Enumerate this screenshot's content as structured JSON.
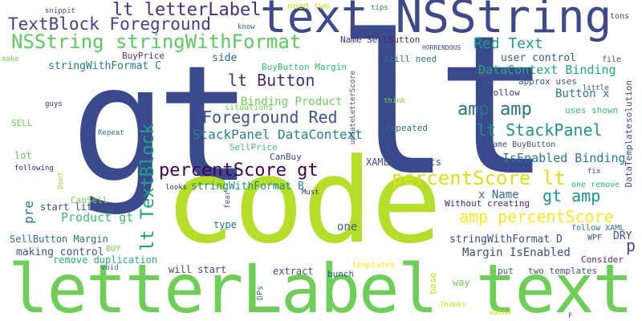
{
  "words": [
    {
      "text": "gt",
      "color": "#3b4a8c",
      "vertical": false
    },
    {
      "text": "lt",
      "color": "#3b4a8c",
      "vertical": false
    },
    {
      "text": "code",
      "color": "#b5de2b",
      "vertical": false
    },
    {
      "text": "letterLabel text",
      "color": "#6ece58",
      "vertical": false
    },
    {
      "text": "text NSString",
      "color": "#3e4a89",
      "vertical": false
    },
    {
      "text": "NSString stringWithFormat",
      "color": "#5ec962",
      "vertical": false
    },
    {
      "text": "lt letterLabel",
      "color": "#46307e",
      "vertical": false
    },
    {
      "text": "TextBlock Foreground",
      "color": "#414487",
      "vertical": false
    },
    {
      "text": "Red Text",
      "color": "#1f9a8a",
      "vertical": false
    },
    {
      "text": "lt Button",
      "color": "#472d7b",
      "vertical": false
    },
    {
      "text": "Foreground Red",
      "color": "#3b528b",
      "vertical": false
    },
    {
      "text": "amp amp",
      "color": "#2c728e",
      "vertical": false
    },
    {
      "text": "lt StackPanel",
      "color": "#20928c",
      "vertical": false
    },
    {
      "text": "percentScore gt",
      "color": "#440154",
      "vertical": false
    },
    {
      "text": "percentScore lt",
      "color": "#d8e219",
      "vertical": false
    },
    {
      "text": "gt amp",
      "color": "#21918c",
      "vertical": false
    },
    {
      "text": "amp percentScore",
      "color": "#fde725",
      "vertical": false
    },
    {
      "text": "lt TextBlock",
      "color": "#1fa187",
      "vertical": true
    },
    {
      "text": "StackPanel DataContext",
      "color": "#26828e",
      "vertical": false
    },
    {
      "text": "Binding Product",
      "color": "#6ece58",
      "vertical": false
    },
    {
      "text": "DataContext Binding",
      "color": "#22a884",
      "vertical": false
    },
    {
      "text": "user control",
      "color": "#33638d",
      "vertical": false
    },
    {
      "text": "Button x",
      "color": "#2a788e",
      "vertical": false
    },
    {
      "text": "IsEnabled Binding",
      "color": "#2a788e",
      "vertical": false
    },
    {
      "text": "x Name",
      "color": "#31688e",
      "vertical": false
    },
    {
      "text": "Product gt",
      "color": "#3fbc73",
      "vertical": false
    },
    {
      "text": "stringWithFormat C",
      "color": "#2a788e",
      "vertical": false
    },
    {
      "text": "stringWithFormat B",
      "color": "#23898e",
      "vertical": false
    },
    {
      "text": "stringWithFormat D",
      "color": "#3e4989",
      "vertical": false
    },
    {
      "text": "Margin IsEnabled",
      "color": "#3b528b",
      "vertical": false
    },
    {
      "text": "remove duplication",
      "color": "#2db27d",
      "vertical": false
    },
    {
      "text": "making control",
      "color": "#3b528b",
      "vertical": false
    },
    {
      "text": "start littering",
      "color": "#3b528b",
      "vertical": false
    },
    {
      "text": "SellButton Margin",
      "color": "#2c728e",
      "vertical": false
    },
    {
      "text": "XAML snippets",
      "color": "#3b528b",
      "vertical": false
    },
    {
      "text": "need two",
      "color": "#c8e020",
      "vertical": false
    },
    {
      "text": "side",
      "color": "#33638d",
      "vertical": false
    },
    {
      "text": "Name SellButton",
      "color": "#472c7a",
      "vertical": false
    },
    {
      "text": "BuyPrice",
      "color": "#453781",
      "vertical": false
    },
    {
      "text": "BuyButton Margin",
      "color": "#35b779",
      "vertical": false
    },
    {
      "text": "still need",
      "color": "#2c728e",
      "vertical": false
    },
    {
      "text": "approx uses",
      "color": "#3b528b",
      "vertical": false
    },
    {
      "text": "follow",
      "color": "#46337f",
      "vertical": false
    },
    {
      "text": "uses shown",
      "color": "#3dbc74",
      "vertical": false
    },
    {
      "text": "repeated",
      "color": "#31688e",
      "vertical": false
    },
    {
      "text": "Name BuyButton",
      "color": "#3b528b",
      "vertical": false
    },
    {
      "text": "CanBuy",
      "color": "#3e4989",
      "vertical": false
    },
    {
      "text": "SellPrice",
      "color": "#48c16e",
      "vertical": false
    },
    {
      "text": "situations",
      "color": "#7ad151",
      "vertical": false
    },
    {
      "text": "one remove",
      "color": "#2db27d",
      "vertical": false
    },
    {
      "text": "Without creating",
      "color": "#481f70",
      "vertical": false
    },
    {
      "text": "follow XAML",
      "color": "#2c728e",
      "vertical": false
    },
    {
      "text": "DRY",
      "color": "#3b528b",
      "vertical": false
    },
    {
      "text": "p",
      "color": "#3e4a89",
      "vertical": false
    },
    {
      "text": "WPF",
      "color": "#3b528b",
      "vertical": false
    },
    {
      "text": "Consider",
      "color": "#472c7a",
      "vertical": false
    },
    {
      "text": "pre",
      "color": "#2a788e",
      "vertical": true
    },
    {
      "text": "one",
      "color": "#31688e",
      "vertical": false
    },
    {
      "text": "type",
      "color": "#2a788e",
      "vertical": false
    },
    {
      "text": "lot",
      "color": "#5ec962",
      "vertical": false
    },
    {
      "text": "SELL",
      "color": "#6ece58",
      "vertical": false
    },
    {
      "text": "BUY",
      "color": "#6ece58",
      "vertical": false
    },
    {
      "text": "CanSell",
      "color": "#7ad151",
      "vertical": false
    },
    {
      "text": "will start",
      "color": "#3e4a89",
      "vertical": false
    },
    {
      "text": "extract",
      "color": "#3b528b",
      "vertical": false
    },
    {
      "text": "bunch",
      "color": "#3b528b",
      "vertical": false
    },
    {
      "text": "put",
      "color": "#3b528b",
      "vertical": false
    },
    {
      "text": "two templates",
      "color": "#3b528b",
      "vertical": false
    },
    {
      "text": "templates",
      "color": "#fde725",
      "vertical": false
    },
    {
      "text": "way",
      "color": "#6ece58",
      "vertical": false
    },
    {
      "text": "base",
      "color": "#c8e020",
      "vertical": true
    },
    {
      "text": "DPs",
      "color": "#2c728e",
      "vertical": true
    },
    {
      "text": "Thanks",
      "color": "#d8e219",
      "vertical": false
    },
    {
      "text": "wanna",
      "color": "#d8e219",
      "vertical": false
    },
    {
      "text": "F",
      "color": "#3b528b",
      "vertical": false
    },
    {
      "text": "snippit",
      "color": "#3b528b",
      "vertical": false
    },
    {
      "text": "make",
      "color": "#7ad151",
      "vertical": false
    },
    {
      "text": "guys",
      "color": "#482475",
      "vertical": false
    },
    {
      "text": "Repeat",
      "color": "#2c728e",
      "vertical": false
    },
    {
      "text": "following",
      "color": "#481b6d",
      "vertical": false
    },
    {
      "text": "Dont",
      "color": "#a0da39",
      "vertical": true
    },
    {
      "text": "looks",
      "color": "#472c7a",
      "vertical": false
    },
    {
      "text": "fear",
      "color": "#3b528b",
      "vertical": true
    },
    {
      "text": "Must",
      "color": "#482475",
      "vertical": false
    },
    {
      "text": "void",
      "color": "#2c728e",
      "vertical": false
    },
    {
      "text": "tips",
      "color": "#2c728e",
      "vertical": false
    },
    {
      "text": "know",
      "color": "#2c728e",
      "vertical": false
    },
    {
      "text": "HORRENDOUS",
      "color": "#3b528b",
      "vertical": false
    },
    {
      "text": "tons",
      "color": "#3b528b",
      "vertical": false
    },
    {
      "text": "file",
      "color": "#3b528b",
      "vertical": false
    },
    {
      "text": "little",
      "color": "#3b528b",
      "vertical": false
    },
    {
      "text": "solution",
      "color": "#3e4a89",
      "vertical": true
    },
    {
      "text": "DataTemplate",
      "color": "#3e4a89",
      "vertical": true
    },
    {
      "text": "fix",
      "color": "#3b528b",
      "vertical": false
    },
    {
      "text": "think",
      "color": "#7ad151",
      "vertical": false
    },
    {
      "text": "updateLetterScore",
      "color": "#3b528b",
      "vertical": true
    }
  ]
}
